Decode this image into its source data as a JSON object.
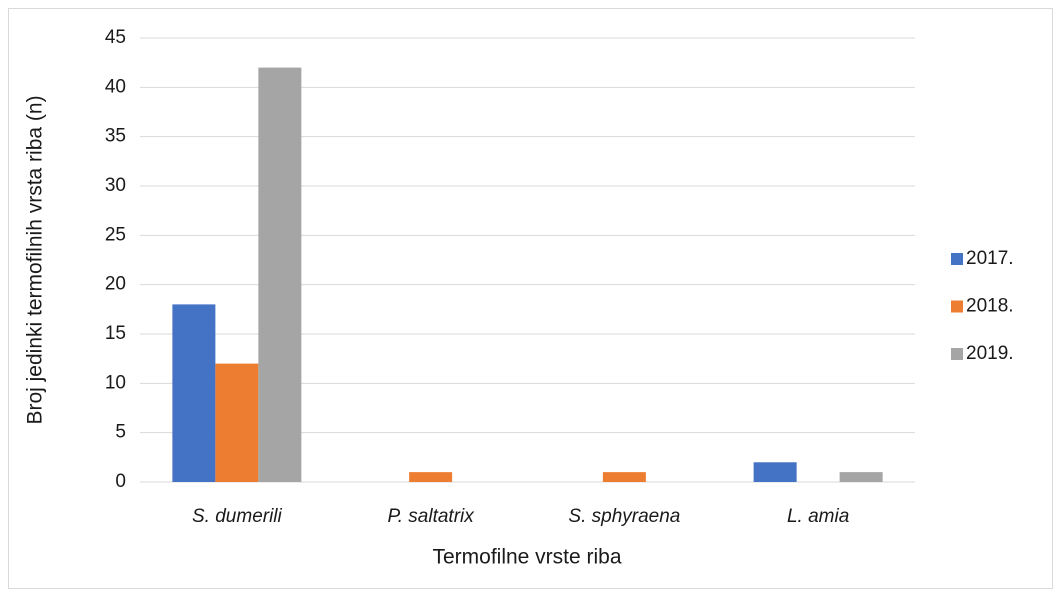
{
  "chart_data": {
    "type": "bar",
    "x_label": "Termofilne vrste riba",
    "y_label": "Broj jedinki termofilnih vrsta riba (n)",
    "categories": [
      "S. dumerili",
      "P. saltatrix",
      "S. sphyraena",
      "L. amia"
    ],
    "series": [
      {
        "name": "2017.",
        "color": "#4472c4",
        "values": [
          18,
          0,
          0,
          2
        ]
      },
      {
        "name": "2018.",
        "color": "#ed7d31",
        "values": [
          12,
          1,
          1,
          0
        ]
      },
      {
        "name": "2019.",
        "color": "#a5a5a5",
        "values": [
          42,
          0,
          0,
          1
        ]
      }
    ],
    "ylim": [
      0,
      45
    ],
    "yticks": [
      0,
      5,
      10,
      15,
      20,
      25,
      30,
      35,
      40,
      45
    ],
    "grid": true,
    "legend": "right"
  }
}
